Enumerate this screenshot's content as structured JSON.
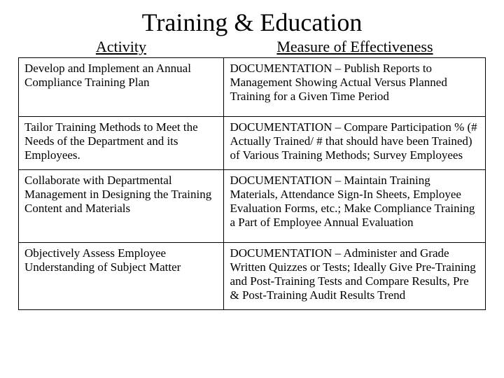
{
  "title": "Training & Education",
  "headers": {
    "activity": "Activity",
    "measure": "Measure of Effectiveness"
  },
  "rows": [
    {
      "activity": "Develop and Implement an Annual Compliance Training Plan",
      "measure": "DOCUMENTATION – Publish Reports to Management Showing Actual Versus Planned Training for a Given Time Period"
    },
    {
      "activity": "Tailor Training Methods to Meet the Needs of the Department and its Employees.",
      "measure": "DOCUMENTATION – Compare Participation % (# Actually Trained/ # that should have been Trained) of Various Training Methods; Survey Employees"
    },
    {
      "activity": "Collaborate with Departmental Management in Designing the Training Content and Materials",
      "measure": "DOCUMENTATION – Maintain Training Materials, Attendance Sign-In Sheets, Employee Evaluation Forms, etc.; Make Compliance Training a Part of Employee Annual Evaluation"
    },
    {
      "activity": "Objectively Assess Employee Understanding of Subject Matter",
      "measure": "DOCUMENTATION – Administer and Grade Written Quizzes or Tests; Ideally Give Pre-Training and Post-Training Tests and Compare Results, Pre & Post-Training Audit Results Trend"
    }
  ],
  "style": {
    "background_color": "#ffffff",
    "text_color": "#000000",
    "border_color": "#000000",
    "title_fontsize": 36,
    "header_fontsize": 22,
    "cell_fontsize": 17,
    "font_family": "Times New Roman",
    "col_widths_pct": [
      44,
      56
    ],
    "slide_width": 720,
    "slide_height": 540
  }
}
